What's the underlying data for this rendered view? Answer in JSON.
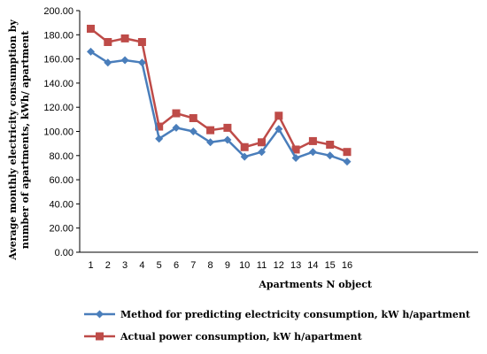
{
  "chart_data": {
    "type": "line",
    "title": "",
    "xlabel": "Apartments N object",
    "ylabel_lines": [
      "Average monthly electricity consumption by",
      "number of apartments, kWh/ apartment"
    ],
    "x": [
      1,
      2,
      3,
      4,
      5,
      6,
      7,
      8,
      9,
      10,
      11,
      12,
      13,
      14,
      15,
      16
    ],
    "ylim": [
      0,
      200
    ],
    "yticks": [
      "0.00",
      "20.00",
      "40.00",
      "60.00",
      "80.00",
      "100.00",
      "120.00",
      "140.00",
      "160.00",
      "180.00",
      "200.00"
    ],
    "legend_position": "bottom",
    "grid": false,
    "series": [
      {
        "name": "Method for predicting electricity consumption, kW h/apartment",
        "color": "#4a7ebb",
        "marker": "diamond",
        "values": [
          166,
          157,
          159,
          157,
          94,
          103,
          100,
          91,
          93,
          79,
          83,
          102,
          78,
          83,
          80,
          75
        ]
      },
      {
        "name": "Actual power consumption, kW h/apartment",
        "color": "#be4b48",
        "marker": "square",
        "values": [
          185,
          174,
          177,
          174,
          104,
          115,
          111,
          101,
          103,
          87,
          91,
          113,
          85,
          92,
          89,
          83
        ]
      }
    ]
  }
}
